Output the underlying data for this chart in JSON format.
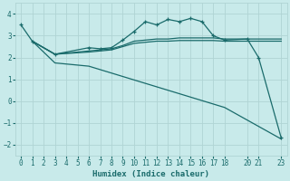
{
  "background_color": "#c8eaea",
  "grid_color": "#b0d4d4",
  "line_color": "#1a6b6b",
  "xlabel": "Humidex (Indice chaleur)",
  "xlim": [
    -0.5,
    23.5
  ],
  "ylim": [
    -2.5,
    4.5
  ],
  "xticks": [
    0,
    1,
    2,
    3,
    4,
    5,
    6,
    7,
    8,
    9,
    10,
    11,
    12,
    13,
    14,
    15,
    16,
    17,
    18,
    20,
    21,
    23
  ],
  "yticks": [
    -2,
    -1,
    0,
    1,
    2,
    3,
    4
  ],
  "line1_x": [
    0,
    1,
    3,
    6,
    7,
    8,
    9,
    10,
    11,
    12,
    13,
    14,
    15,
    16,
    17,
    18,
    20,
    21,
    23
  ],
  "line1_y": [
    3.5,
    2.75,
    2.15,
    2.45,
    2.4,
    2.45,
    2.8,
    3.2,
    3.65,
    3.5,
    3.75,
    3.65,
    3.8,
    3.65,
    3.0,
    2.8,
    2.85,
    2.0,
    -1.7
  ],
  "line2_x": [
    1,
    3,
    6,
    7,
    8,
    9,
    10,
    11,
    12,
    13,
    14,
    15,
    16,
    17,
    18,
    20,
    21,
    23
  ],
  "line2_y": [
    2.75,
    2.15,
    2.3,
    2.35,
    2.4,
    2.55,
    2.75,
    2.8,
    2.85,
    2.85,
    2.9,
    2.9,
    2.9,
    2.9,
    2.85,
    2.85,
    2.85,
    2.85
  ],
  "line3_x": [
    1,
    3,
    6,
    7,
    8,
    9,
    10,
    11,
    12,
    13,
    14,
    15,
    16,
    17,
    18,
    20,
    21,
    23
  ],
  "line3_y": [
    2.75,
    2.15,
    2.25,
    2.3,
    2.35,
    2.5,
    2.65,
    2.7,
    2.75,
    2.75,
    2.78,
    2.78,
    2.78,
    2.78,
    2.75,
    2.75,
    2.75,
    2.75
  ],
  "line4_x": [
    1,
    3,
    6,
    18,
    23
  ],
  "line4_y": [
    2.75,
    1.75,
    1.6,
    -0.3,
    -1.75
  ]
}
